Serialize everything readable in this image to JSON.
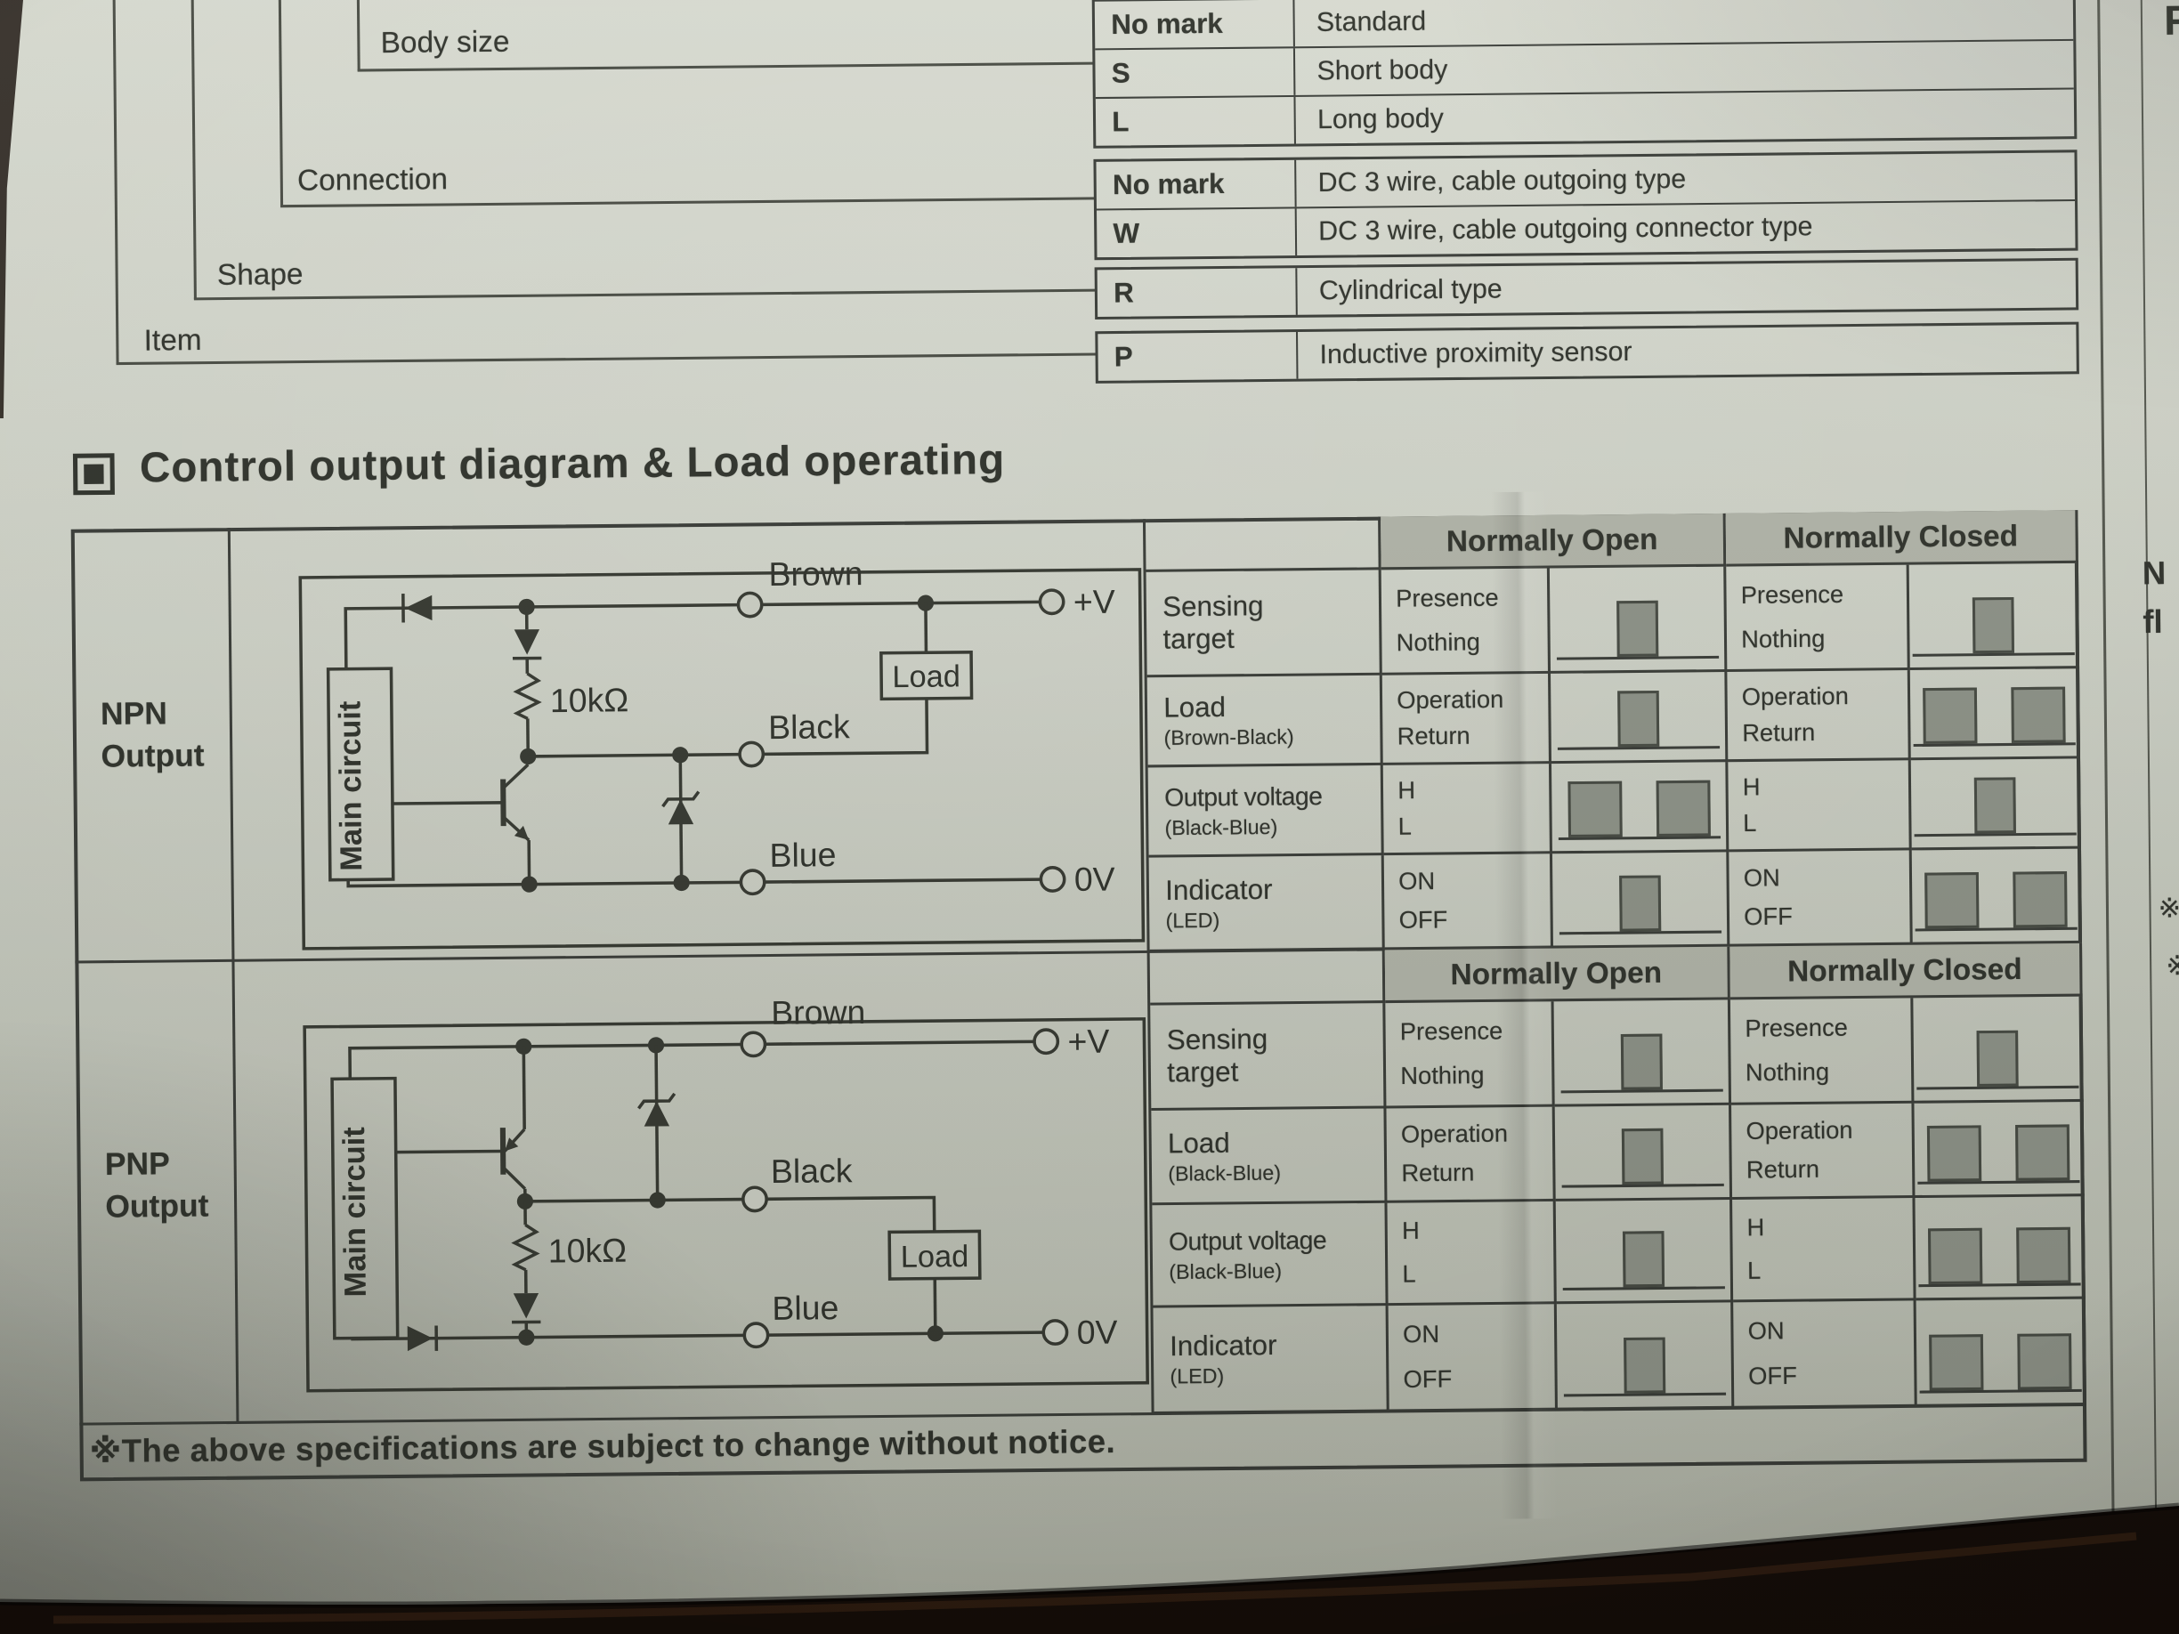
{
  "page": {
    "section_title": "Control output diagram & Load operating",
    "footnote": "※The above specifications are subject to change without notice."
  },
  "model_legend": {
    "groups": [
      {
        "label": "Body size",
        "rows": [
          {
            "code": "No mark",
            "desc": "Standard"
          },
          {
            "code": "S",
            "desc": "Short body"
          },
          {
            "code": "L",
            "desc": "Long body"
          }
        ]
      },
      {
        "label": "Connection",
        "rows": [
          {
            "code": "No mark",
            "desc": "DC 3 wire, cable outgoing type"
          },
          {
            "code": "W",
            "desc": "DC 3 wire, cable outgoing connector type"
          }
        ]
      },
      {
        "label": "Shape",
        "rows": [
          {
            "code": "R",
            "desc": "Cylindrical type"
          }
        ]
      },
      {
        "label": "Item",
        "rows": [
          {
            "code": "P",
            "desc": "Inductive proximity sensor"
          }
        ]
      }
    ]
  },
  "outputs": [
    {
      "name_line1": "NPN",
      "name_line2": "Output",
      "circuit": {
        "main_circuit": "Main circuit",
        "resistor": "10kΩ",
        "load": "Load",
        "wire_top": "Brown",
        "wire_mid": "Black",
        "wire_bottom": "Blue",
        "terminal_plus": "+V",
        "terminal_zero": "0V"
      },
      "table": {
        "header_open": "Normally Open",
        "header_closed": "Normally Closed",
        "rows": [
          {
            "label": "Sensing target",
            "label_sub": "",
            "no_state_top": "Presence",
            "no_state_bottom": "Nothing",
            "no_wave": "pulse",
            "nc_state_top": "Presence",
            "nc_state_bottom": "Nothing",
            "nc_wave": "pulse"
          },
          {
            "label": "Load",
            "label_sub": "(Brown-Black)",
            "no_state_top": "Operation",
            "no_state_bottom": "Return",
            "no_wave": "pulse",
            "nc_state_top": "Operation",
            "nc_state_bottom": "Return",
            "nc_wave": "notch"
          },
          {
            "label": "Output voltage",
            "label_sub": "(Black-Blue)",
            "no_state_top": "H",
            "no_state_bottom": "L",
            "no_wave": "notch",
            "nc_state_top": "H",
            "nc_state_bottom": "L",
            "nc_wave": "pulse"
          },
          {
            "label": "Indicator",
            "label_sub": "(LED)",
            "no_state_top": "ON",
            "no_state_bottom": "OFF",
            "no_wave": "pulse",
            "nc_state_top": "ON",
            "nc_state_bottom": "OFF",
            "nc_wave": "notch"
          }
        ]
      }
    },
    {
      "name_line1": "PNP",
      "name_line2": "Output",
      "circuit": {
        "main_circuit": "Main circuit",
        "resistor": "10kΩ",
        "load": "Load",
        "wire_top": "Brown",
        "wire_mid": "Black",
        "wire_bottom": "Blue",
        "terminal_plus": "+V",
        "terminal_zero": "0V"
      },
      "table": {
        "header_open": "Normally Open",
        "header_closed": "Normally Closed",
        "rows": [
          {
            "label": "Sensing target",
            "label_sub": "",
            "no_state_top": "Presence",
            "no_state_bottom": "Nothing",
            "no_wave": "pulse",
            "nc_state_top": "Presence",
            "nc_state_bottom": "Nothing",
            "nc_wave": "pulse"
          },
          {
            "label": "Load",
            "label_sub": "(Black-Blue)",
            "no_state_top": "Operation",
            "no_state_bottom": "Return",
            "no_wave": "pulse",
            "nc_state_top": "Operation",
            "nc_state_bottom": "Return",
            "nc_wave": "notch"
          },
          {
            "label": "Output voltage",
            "label_sub": "(Black-Blue)",
            "no_state_top": "H",
            "no_state_bottom": "L",
            "no_wave": "pulse",
            "nc_state_top": "H",
            "nc_state_bottom": "L",
            "nc_wave": "notch"
          },
          {
            "label": "Indicator",
            "label_sub": "(LED)",
            "no_state_top": "ON",
            "no_state_bottom": "OFF",
            "no_wave": "pulse",
            "nc_state_top": "ON",
            "nc_state_bottom": "OFF",
            "nc_wave": "notch"
          }
        ]
      }
    }
  ],
  "edge_fragments": {
    "next_column_top": "F",
    "right_text_1": "N",
    "right_text_2": "fl",
    "right_mark_1": "※",
    "right_mark_2": "※"
  },
  "colors": {
    "paper": "#c7cbbf",
    "ink": "#30332c",
    "header_shade": "#b2b5a9",
    "waveform_block": "#8e9388",
    "table_line": "#3a3d38",
    "desk": "#17100a"
  }
}
